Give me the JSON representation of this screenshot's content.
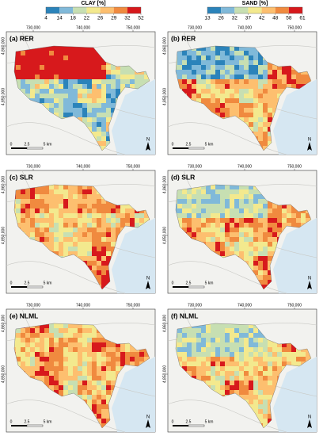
{
  "legends": [
    {
      "title": "CLAY [%]",
      "ticks": [
        4,
        14,
        18,
        22,
        26,
        29,
        32,
        52
      ]
    },
    {
      "title": "SAND [%]",
      "ticks": [
        13,
        26,
        32,
        37,
        42,
        48,
        58,
        61
      ]
    }
  ],
  "panels": [
    {
      "label": "(a) RER"
    },
    {
      "label": "(b) RER"
    },
    {
      "label": "(c) SLR"
    },
    {
      "label": "(d) SLR"
    },
    {
      "label": "(e) NLML"
    },
    {
      "label": "(f) NLML"
    }
  ],
  "x_axis_labels": [
    "730,000",
    "740,000",
    "750,000"
  ],
  "y_axis_labels": [
    "4,860,000",
    "4,850,000"
  ],
  "scale_bar": [
    "0",
    "2.5",
    "5 km"
  ],
  "north": "N"
}
